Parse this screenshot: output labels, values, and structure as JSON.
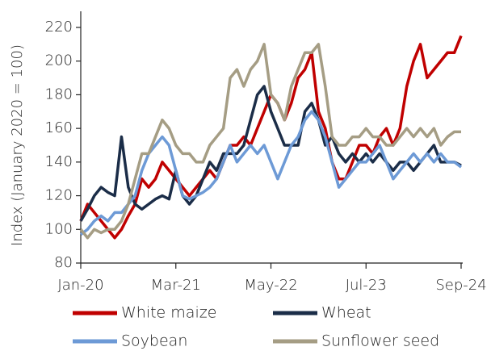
{
  "chart_data": {
    "type": "line",
    "y_label": "Index (January 2020 = 100)",
    "x": [
      "2020-01",
      "2020-02",
      "2020-03",
      "2020-04",
      "2020-05",
      "2020-06",
      "2020-07",
      "2020-08",
      "2020-09",
      "2020-10",
      "2020-11",
      "2020-12",
      "2021-01",
      "2021-02",
      "2021-03",
      "2021-04",
      "2021-05",
      "2021-06",
      "2021-07",
      "2021-08",
      "2021-09",
      "2021-10",
      "2021-11",
      "2021-12",
      "2022-01",
      "2022-02",
      "2022-03",
      "2022-04",
      "2022-05",
      "2022-06",
      "2022-07",
      "2022-08",
      "2022-09",
      "2022-10",
      "2022-11",
      "2022-12",
      "2023-01",
      "2023-02",
      "2023-03",
      "2023-04",
      "2023-05",
      "2023-06",
      "2023-07",
      "2023-08",
      "2023-09",
      "2023-10",
      "2023-11",
      "2023-12",
      "2024-01",
      "2024-02",
      "2024-03",
      "2024-04",
      "2024-05",
      "2024-06",
      "2024-07",
      "2024-08",
      "2024-09"
    ],
    "series": [
      {
        "name": "White maize",
        "color": "#c00000",
        "values": [
          105,
          115,
          110,
          105,
          100,
          95,
          100,
          108,
          115,
          130,
          125,
          130,
          140,
          135,
          130,
          125,
          120,
          125,
          130,
          135,
          130,
          140,
          150,
          150,
          155,
          150,
          160,
          170,
          180,
          175,
          165,
          175,
          190,
          195,
          205,
          170,
          160,
          140,
          130,
          130,
          140,
          150,
          150,
          145,
          155,
          160,
          150,
          160,
          185,
          200,
          210,
          190,
          195,
          200,
          205,
          205,
          215
        ]
      },
      {
        "name": "Wheat",
        "color": "#1b2d48",
        "values": [
          105,
          112,
          120,
          125,
          122,
          120,
          155,
          125,
          115,
          112,
          115,
          118,
          120,
          118,
          135,
          120,
          115,
          120,
          130,
          140,
          135,
          145,
          145,
          145,
          150,
          165,
          180,
          185,
          170,
          160,
          150,
          150,
          150,
          170,
          175,
          165,
          150,
          155,
          145,
          140,
          145,
          140,
          145,
          140,
          145,
          140,
          135,
          140,
          140,
          135,
          140,
          145,
          150,
          140,
          140,
          140,
          138
        ]
      },
      {
        "name": "Soybean",
        "color": "#6d9ad6",
        "values": [
          97,
          100,
          105,
          108,
          105,
          110,
          110,
          115,
          120,
          135,
          145,
          150,
          155,
          150,
          135,
          120,
          118,
          120,
          122,
          125,
          130,
          140,
          150,
          140,
          145,
          150,
          145,
          150,
          140,
          130,
          140,
          150,
          155,
          165,
          170,
          165,
          155,
          140,
          125,
          130,
          135,
          140,
          140,
          145,
          150,
          140,
          130,
          135,
          140,
          145,
          140,
          145,
          140,
          145,
          140,
          140,
          137
        ]
      },
      {
        "name": "Sunflower seed",
        "color": "#a59d84",
        "values": [
          100,
          95,
          100,
          98,
          100,
          100,
          105,
          115,
          130,
          145,
          145,
          155,
          165,
          160,
          150,
          145,
          145,
          140,
          140,
          150,
          155,
          160,
          190,
          195,
          185,
          195,
          200,
          210,
          180,
          175,
          165,
          185,
          195,
          205,
          205,
          210,
          185,
          155,
          150,
          150,
          155,
          155,
          160,
          155,
          155,
          150,
          150,
          155,
          160,
          155,
          160,
          155,
          160,
          150,
          155,
          158,
          158
        ]
      }
    ],
    "xlim": [
      "2020-01",
      "2024-09"
    ],
    "xticks": [
      {
        "value": "2020-01",
        "label": "Jan-20"
      },
      {
        "value": "2021-03",
        "label": "Mar-21"
      },
      {
        "value": "2022-05",
        "label": "May-22"
      },
      {
        "value": "2023-07",
        "label": "Jul-23"
      },
      {
        "value": "2024-09",
        "label": "Sep-24"
      }
    ],
    "ylim": [
      80,
      220
    ],
    "yticks": [
      80,
      100,
      120,
      140,
      160,
      180,
      200,
      220
    ]
  }
}
